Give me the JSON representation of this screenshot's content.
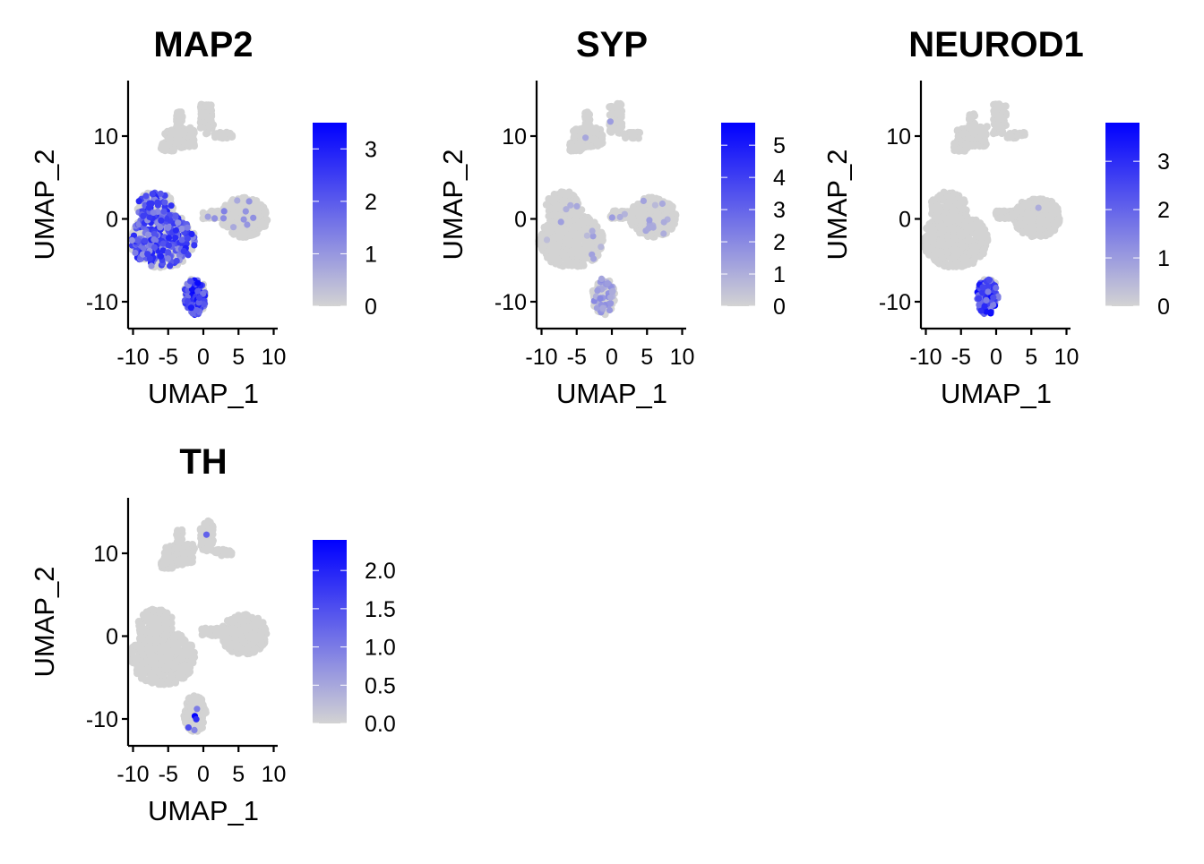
{
  "chart_data": [
    {
      "type": "scatter",
      "title": "MAP2",
      "xlabel": "UMAP_1",
      "ylabel": "UMAP_2",
      "x_ticks": [
        "-10",
        "-5",
        "0",
        "5",
        "10"
      ],
      "y_ticks": [
        "-10",
        "0",
        "10"
      ],
      "xlim": [
        -11,
        11
      ],
      "ylim": [
        -13.5,
        16.5
      ],
      "color_scale": {
        "low": "#d3d3d3",
        "high": "#0000ff",
        "min": 0,
        "max": 3.5,
        "ticks": [
          {
            "value": 0,
            "label": "0"
          },
          {
            "value": 1,
            "label": "1"
          },
          {
            "value": 2,
            "label": "2"
          },
          {
            "value": 3,
            "label": "3"
          }
        ]
      },
      "clusters": [
        {
          "name": "top",
          "expr_fraction": 0.0,
          "max_expr": 0
        },
        {
          "name": "left",
          "expr_fraction": 0.45,
          "max_expr": 3.0
        },
        {
          "name": "right",
          "expr_fraction": 0.03,
          "max_expr": 1.5
        },
        {
          "name": "bottom",
          "expr_fraction": 0.7,
          "max_expr": 3.5
        }
      ]
    },
    {
      "type": "scatter",
      "title": "SYP",
      "xlabel": "UMAP_1",
      "ylabel": "UMAP_2",
      "x_ticks": [
        "-10",
        "-5",
        "0",
        "5",
        "10"
      ],
      "y_ticks": [
        "-10",
        "0",
        "10"
      ],
      "xlim": [
        -11,
        11
      ],
      "ylim": [
        -13.5,
        16.5
      ],
      "color_scale": {
        "low": "#d3d3d3",
        "high": "#0000ff",
        "min": 0,
        "max": 5.7,
        "ticks": [
          {
            "value": 0,
            "label": "0"
          },
          {
            "value": 1,
            "label": "1"
          },
          {
            "value": 2,
            "label": "2"
          },
          {
            "value": 3,
            "label": "3"
          },
          {
            "value": 4,
            "label": "4"
          },
          {
            "value": 5,
            "label": "5"
          }
        ]
      },
      "clusters": [
        {
          "name": "top",
          "expr_fraction": 0.01,
          "max_expr": 1.5
        },
        {
          "name": "left",
          "expr_fraction": 0.02,
          "max_expr": 1.5
        },
        {
          "name": "right",
          "expr_fraction": 0.03,
          "max_expr": 1.5
        },
        {
          "name": "bottom",
          "expr_fraction": 0.25,
          "max_expr": 2.0
        }
      ]
    },
    {
      "type": "scatter",
      "title": "NEUROD1",
      "xlabel": "UMAP_1",
      "ylabel": "UMAP_2",
      "x_ticks": [
        "-10",
        "-5",
        "0",
        "5",
        "10"
      ],
      "y_ticks": [
        "-10",
        "0",
        "10"
      ],
      "xlim": [
        -11,
        11
      ],
      "ylim": [
        -13.5,
        16.5
      ],
      "color_scale": {
        "low": "#d3d3d3",
        "high": "#0000ff",
        "min": 0,
        "max": 3.8,
        "ticks": [
          {
            "value": 0,
            "label": "0"
          },
          {
            "value": 1,
            "label": "1"
          },
          {
            "value": 2,
            "label": "2"
          },
          {
            "value": 3,
            "label": "3"
          }
        ]
      },
      "clusters": [
        {
          "name": "top",
          "expr_fraction": 0.0,
          "max_expr": 0
        },
        {
          "name": "left",
          "expr_fraction": 0.0,
          "max_expr": 0
        },
        {
          "name": "right",
          "expr_fraction": 0.005,
          "max_expr": 1.0
        },
        {
          "name": "bottom",
          "expr_fraction": 0.75,
          "max_expr": 3.8
        }
      ]
    },
    {
      "type": "scatter",
      "title": "TH",
      "xlabel": "UMAP_1",
      "ylabel": "UMAP_2",
      "x_ticks": [
        "-10",
        "-5",
        "0",
        "5",
        "10"
      ],
      "y_ticks": [
        "-10",
        "0",
        "10"
      ],
      "xlim": [
        -11,
        11
      ],
      "ylim": [
        -13.5,
        16.5
      ],
      "color_scale": {
        "low": "#d3d3d3",
        "high": "#0000ff",
        "min": 0,
        "max": 2.4,
        "ticks": [
          {
            "value": 0.0,
            "label": "0.0"
          },
          {
            "value": 0.5,
            "label": "0.5"
          },
          {
            "value": 1.0,
            "label": "1.0"
          },
          {
            "value": 1.5,
            "label": "1.5"
          },
          {
            "value": 2.0,
            "label": "2.0"
          }
        ]
      },
      "clusters": [
        {
          "name": "top",
          "expr_fraction": 0.003,
          "max_expr": 2.0
        },
        {
          "name": "left",
          "expr_fraction": 0.0,
          "max_expr": 0
        },
        {
          "name": "right",
          "expr_fraction": 0.0,
          "max_expr": 0
        },
        {
          "name": "bottom",
          "expr_fraction": 0.05,
          "max_expr": 2.4
        }
      ]
    }
  ]
}
